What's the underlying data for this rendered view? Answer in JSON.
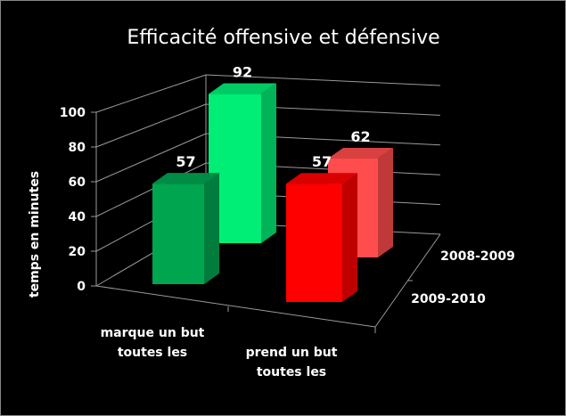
{
  "chart_data": {
    "type": "bar",
    "variant": "3d-column",
    "title": "Efficacité offensive et défensive",
    "ylabel": "temps en minutes",
    "ylim": [
      0,
      100
    ],
    "yticks": [
      "0",
      "20",
      "40",
      "60",
      "80",
      "100"
    ],
    "grid": true,
    "categories": [
      [
        "marque un but",
        "toutes les"
      ],
      [
        "prend un but",
        "toutes les"
      ]
    ],
    "series": [
      {
        "name": "2009-2010",
        "values": [
          57,
          57
        ],
        "colors": [
          "#00a550",
          "#ff0000"
        ]
      },
      {
        "name": "2008-2009",
        "values": [
          92,
          62
        ],
        "colors": [
          "#00ee76",
          "#ff4c4c"
        ]
      }
    ],
    "background": "#000000"
  }
}
